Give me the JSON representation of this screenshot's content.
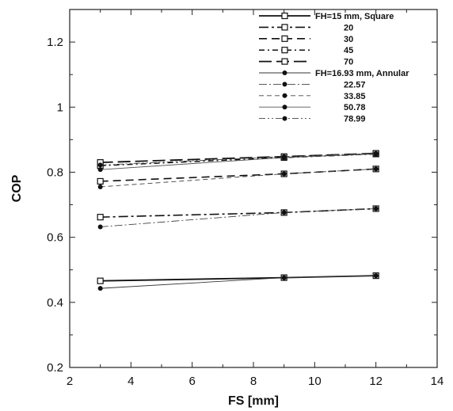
{
  "chart_data": {
    "type": "line",
    "xlabel": "FS [mm]",
    "ylabel": "COP",
    "xlim": [
      2,
      14
    ],
    "ylim": [
      0.2,
      1.3
    ],
    "xticks": [
      2,
      4,
      6,
      8,
      10,
      12,
      14
    ],
    "yticks": [
      0.2,
      0.4,
      0.6,
      0.8,
      1,
      1.2
    ],
    "ytick_labels": [
      "0.2",
      "0.4",
      "0.6",
      "0.8",
      "1",
      "1.2"
    ],
    "grid": false,
    "legend_position": "top-right",
    "series": [
      {
        "name": "FH=15 mm, Square",
        "marker": "square",
        "dash": "solid",
        "x": [
          3,
          9,
          12
        ],
        "y": [
          0.466,
          0.476,
          0.482
        ]
      },
      {
        "name": "20",
        "marker": "square",
        "dash": "dashdot",
        "x": [
          3,
          9,
          12
        ],
        "y": [
          0.662,
          0.676,
          0.688
        ]
      },
      {
        "name": "30",
        "marker": "square",
        "dash": "dash",
        "x": [
          3,
          9,
          12
        ],
        "y": [
          0.772,
          0.795,
          0.81
        ]
      },
      {
        "name": "45",
        "marker": "square",
        "dash": "dashdot2",
        "x": [
          3,
          9,
          12
        ],
        "y": [
          0.82,
          0.845,
          0.856
        ]
      },
      {
        "name": "70",
        "marker": "square",
        "dash": "longdash",
        "x": [
          3,
          9,
          12
        ],
        "y": [
          0.83,
          0.848,
          0.858
        ]
      },
      {
        "name": "FH=16.93 mm, Annular",
        "marker": "dot",
        "dash": "thinsolid",
        "x": [
          3,
          9,
          12
        ],
        "y": [
          0.443,
          0.476,
          0.482
        ]
      },
      {
        "name": "22.57",
        "marker": "dot",
        "dash": "thindashdot",
        "x": [
          3,
          9,
          12
        ],
        "y": [
          0.632,
          0.676,
          0.688
        ]
      },
      {
        "name": "33.85",
        "marker": "dot",
        "dash": "thindash",
        "x": [
          3,
          9,
          12
        ],
        "y": [
          0.755,
          0.795,
          0.81
        ]
      },
      {
        "name": "50.78",
        "marker": "dot",
        "dash": "thinsolid2",
        "x": [
          3,
          9,
          12
        ],
        "y": [
          0.808,
          0.845,
          0.856
        ]
      },
      {
        "name": "78.99",
        "marker": "dot",
        "dash": "thindashdot2",
        "x": [
          3,
          9,
          12
        ],
        "y": [
          0.822,
          0.848,
          0.858
        ]
      }
    ]
  }
}
